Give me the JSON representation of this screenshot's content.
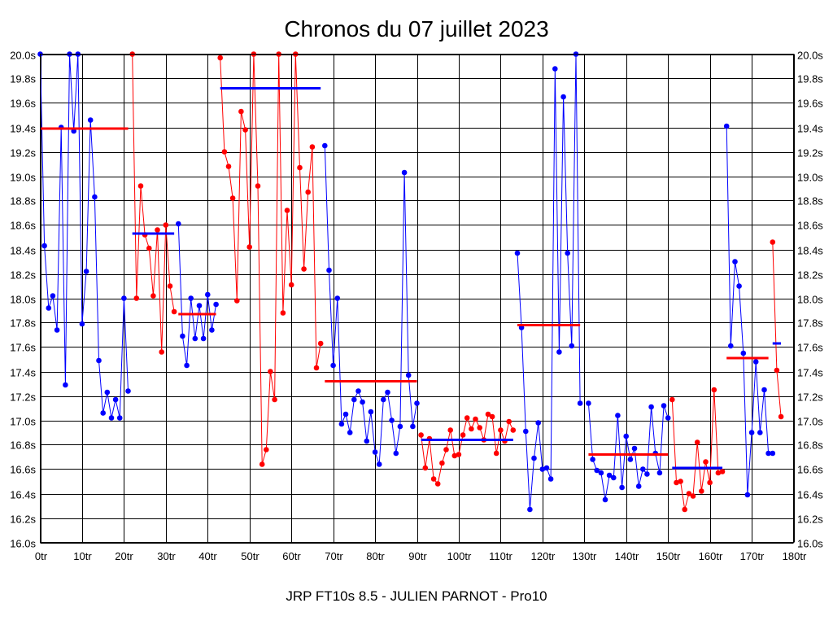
{
  "chart_data": {
    "type": "line",
    "title": "Chronos du 07 juillet 2023",
    "footer": "JRP FT10s 8.5 - JULIEN PARNOT - Pro10",
    "xlim": [
      0,
      180
    ],
    "ylim": [
      16.0,
      20.0
    ],
    "x_ticks": [
      0,
      10,
      20,
      30,
      40,
      50,
      60,
      70,
      80,
      90,
      100,
      110,
      120,
      130,
      140,
      150,
      160,
      170,
      180
    ],
    "x_tick_labels": [
      "0tr",
      "10tr",
      "20tr",
      "30tr",
      "40tr",
      "50tr",
      "60tr",
      "70tr",
      "80tr",
      "90tr",
      "100tr",
      "110tr",
      "120tr",
      "130tr",
      "140tr",
      "150tr",
      "160tr",
      "170tr",
      "180tr"
    ],
    "y_ticks": [
      16.0,
      16.2,
      16.4,
      16.6,
      16.8,
      17.0,
      17.2,
      17.4,
      17.6,
      17.8,
      18.0,
      18.2,
      18.4,
      18.6,
      18.8,
      19.0,
      19.2,
      19.4,
      19.6,
      19.8,
      20.0
    ],
    "y_tick_labels": [
      "16.0s",
      "16.2s",
      "16.4s",
      "16.6s",
      "16.8s",
      "17.0s",
      "17.2s",
      "17.4s",
      "17.6s",
      "17.8s",
      "18.0s",
      "18.2s",
      "18.4s",
      "18.6s",
      "18.8s",
      "19.0s",
      "19.2s",
      "19.4s",
      "19.6s",
      "19.8s",
      "20.0s"
    ],
    "grid": true,
    "colors": {
      "blue": "#0000ff",
      "red": "#ff0000"
    },
    "series": [
      {
        "color": "blue",
        "x": [
          0,
          1,
          2,
          3,
          4,
          5,
          6,
          7,
          8,
          9,
          10,
          11,
          12,
          13,
          14,
          15,
          16,
          17,
          18,
          19,
          20,
          21
        ],
        "y": [
          20.0,
          18.43,
          17.92,
          18.02,
          17.74,
          19.4,
          17.29,
          20.0,
          19.37,
          20.0,
          17.79,
          18.22,
          19.46,
          18.83,
          17.49,
          17.06,
          17.23,
          17.02,
          17.17,
          17.02,
          18.0,
          17.24
        ]
      },
      {
        "color": "red",
        "x": [
          22,
          23,
          24,
          25,
          26,
          27,
          28,
          29,
          30,
          31,
          32
        ],
        "y": [
          20.0,
          18.0,
          18.92,
          18.52,
          18.41,
          18.02,
          18.56,
          17.56,
          18.6,
          18.1,
          17.89
        ]
      },
      {
        "color": "blue",
        "x": [
          33,
          34,
          35,
          36,
          37,
          38,
          39,
          40,
          41,
          42
        ],
        "y": [
          18.61,
          17.69,
          17.45,
          18.0,
          17.67,
          17.94,
          17.67,
          18.03,
          17.74,
          17.95
        ]
      },
      {
        "color": "red",
        "x": [
          43,
          44,
          45,
          46,
          47,
          48,
          49,
          50,
          51,
          52,
          53,
          54,
          55,
          56,
          57,
          58,
          59,
          60,
          61,
          62,
          63,
          64,
          65,
          66,
          67
        ],
        "y": [
          19.97,
          19.2,
          19.08,
          18.82,
          17.98,
          19.53,
          19.38,
          18.42,
          20.0,
          18.92,
          16.64,
          16.76,
          17.4,
          17.17,
          20.0,
          17.88,
          18.72,
          18.11,
          20.0,
          19.07,
          18.24,
          18.87,
          19.24,
          17.43,
          17.63
        ]
      },
      {
        "color": "blue",
        "x": [
          68,
          69,
          70,
          71,
          72,
          73,
          74,
          75,
          76,
          77,
          78,
          79,
          80,
          81,
          82,
          83,
          84,
          85,
          86,
          87,
          88,
          89,
          90
        ],
        "y": [
          19.25,
          18.23,
          17.45,
          18.0,
          16.97,
          17.05,
          16.9,
          17.17,
          17.24,
          17.15,
          16.83,
          17.07,
          16.74,
          16.64,
          17.17,
          17.23,
          17.0,
          16.73,
          16.95,
          19.03,
          17.37,
          16.95,
          17.14
        ]
      },
      {
        "color": "red",
        "x": [
          91,
          92,
          93,
          94,
          95,
          96,
          97,
          98,
          99,
          100,
          101,
          102,
          103,
          104,
          105,
          106,
          107,
          108,
          109,
          110,
          111,
          112,
          113
        ],
        "y": [
          16.88,
          16.61,
          16.85,
          16.52,
          16.48,
          16.65,
          16.76,
          16.92,
          16.71,
          16.72,
          16.88,
          17.02,
          16.93,
          17.01,
          16.94,
          16.84,
          17.05,
          17.03,
          16.73,
          16.92,
          16.83,
          16.99,
          16.92
        ]
      },
      {
        "color": "blue",
        "x": [
          114,
          115,
          116,
          117,
          118,
          119,
          120,
          121,
          122,
          123,
          124,
          125,
          126,
          127,
          128,
          129
        ],
        "y": [
          18.37,
          17.76,
          16.91,
          16.27,
          16.69,
          16.98,
          16.6,
          16.61,
          16.52,
          19.88,
          17.56,
          19.65,
          18.37,
          17.61,
          20.0,
          17.14
        ]
      },
      {
        "color": "blue",
        "x": [
          131,
          132,
          133,
          134,
          135,
          136,
          137,
          138,
          139,
          140,
          141,
          142,
          143,
          144,
          145,
          146,
          147,
          148,
          149,
          150
        ],
        "y": [
          17.14,
          16.68,
          16.59,
          16.57,
          16.35,
          16.55,
          16.53,
          17.04,
          16.45,
          16.87,
          16.68,
          16.77,
          16.46,
          16.6,
          16.56,
          17.11,
          16.73,
          16.57,
          17.12,
          17.02
        ]
      },
      {
        "color": "red",
        "x": [
          151,
          152,
          153,
          154,
          155,
          156,
          157,
          158,
          159,
          160,
          161,
          162,
          163
        ],
        "y": [
          17.17,
          16.49,
          16.5,
          16.27,
          16.4,
          16.38,
          16.82,
          16.42,
          16.66,
          16.49,
          17.25,
          16.57,
          16.58
        ]
      },
      {
        "color": "blue",
        "x": [
          164,
          165,
          166,
          167,
          168,
          169,
          170,
          171,
          172,
          173,
          174,
          175
        ],
        "y": [
          19.41,
          17.61,
          18.3,
          18.1,
          17.55,
          16.39,
          16.9,
          17.48,
          16.9,
          17.25,
          16.73,
          16.73
        ]
      },
      {
        "color": "red",
        "x": [
          175,
          176,
          177
        ],
        "y": [
          18.46,
          17.41,
          17.03
        ]
      }
    ],
    "average_lines": [
      {
        "color": "red",
        "x_start": 0,
        "x_end": 21,
        "y": 19.39
      },
      {
        "color": "blue",
        "x_start": 22,
        "x_end": 32,
        "y": 18.53
      },
      {
        "color": "red",
        "x_start": 33,
        "x_end": 42,
        "y": 17.87
      },
      {
        "color": "blue",
        "x_start": 43,
        "x_end": 67,
        "y": 19.72
      },
      {
        "color": "red",
        "x_start": 68,
        "x_end": 90,
        "y": 17.32
      },
      {
        "color": "blue",
        "x_start": 91,
        "x_end": 113,
        "y": 16.84
      },
      {
        "color": "red",
        "x_start": 114,
        "x_end": 129,
        "y": 17.78
      },
      {
        "color": "red",
        "x_start": 131,
        "x_end": 150,
        "y": 16.72
      },
      {
        "color": "blue",
        "x_start": 151,
        "x_end": 163,
        "y": 16.61
      },
      {
        "color": "red",
        "x_start": 164,
        "x_end": 174,
        "y": 17.51
      },
      {
        "color": "blue",
        "x_start": 175,
        "x_end": 177,
        "y": 17.63
      }
    ]
  }
}
